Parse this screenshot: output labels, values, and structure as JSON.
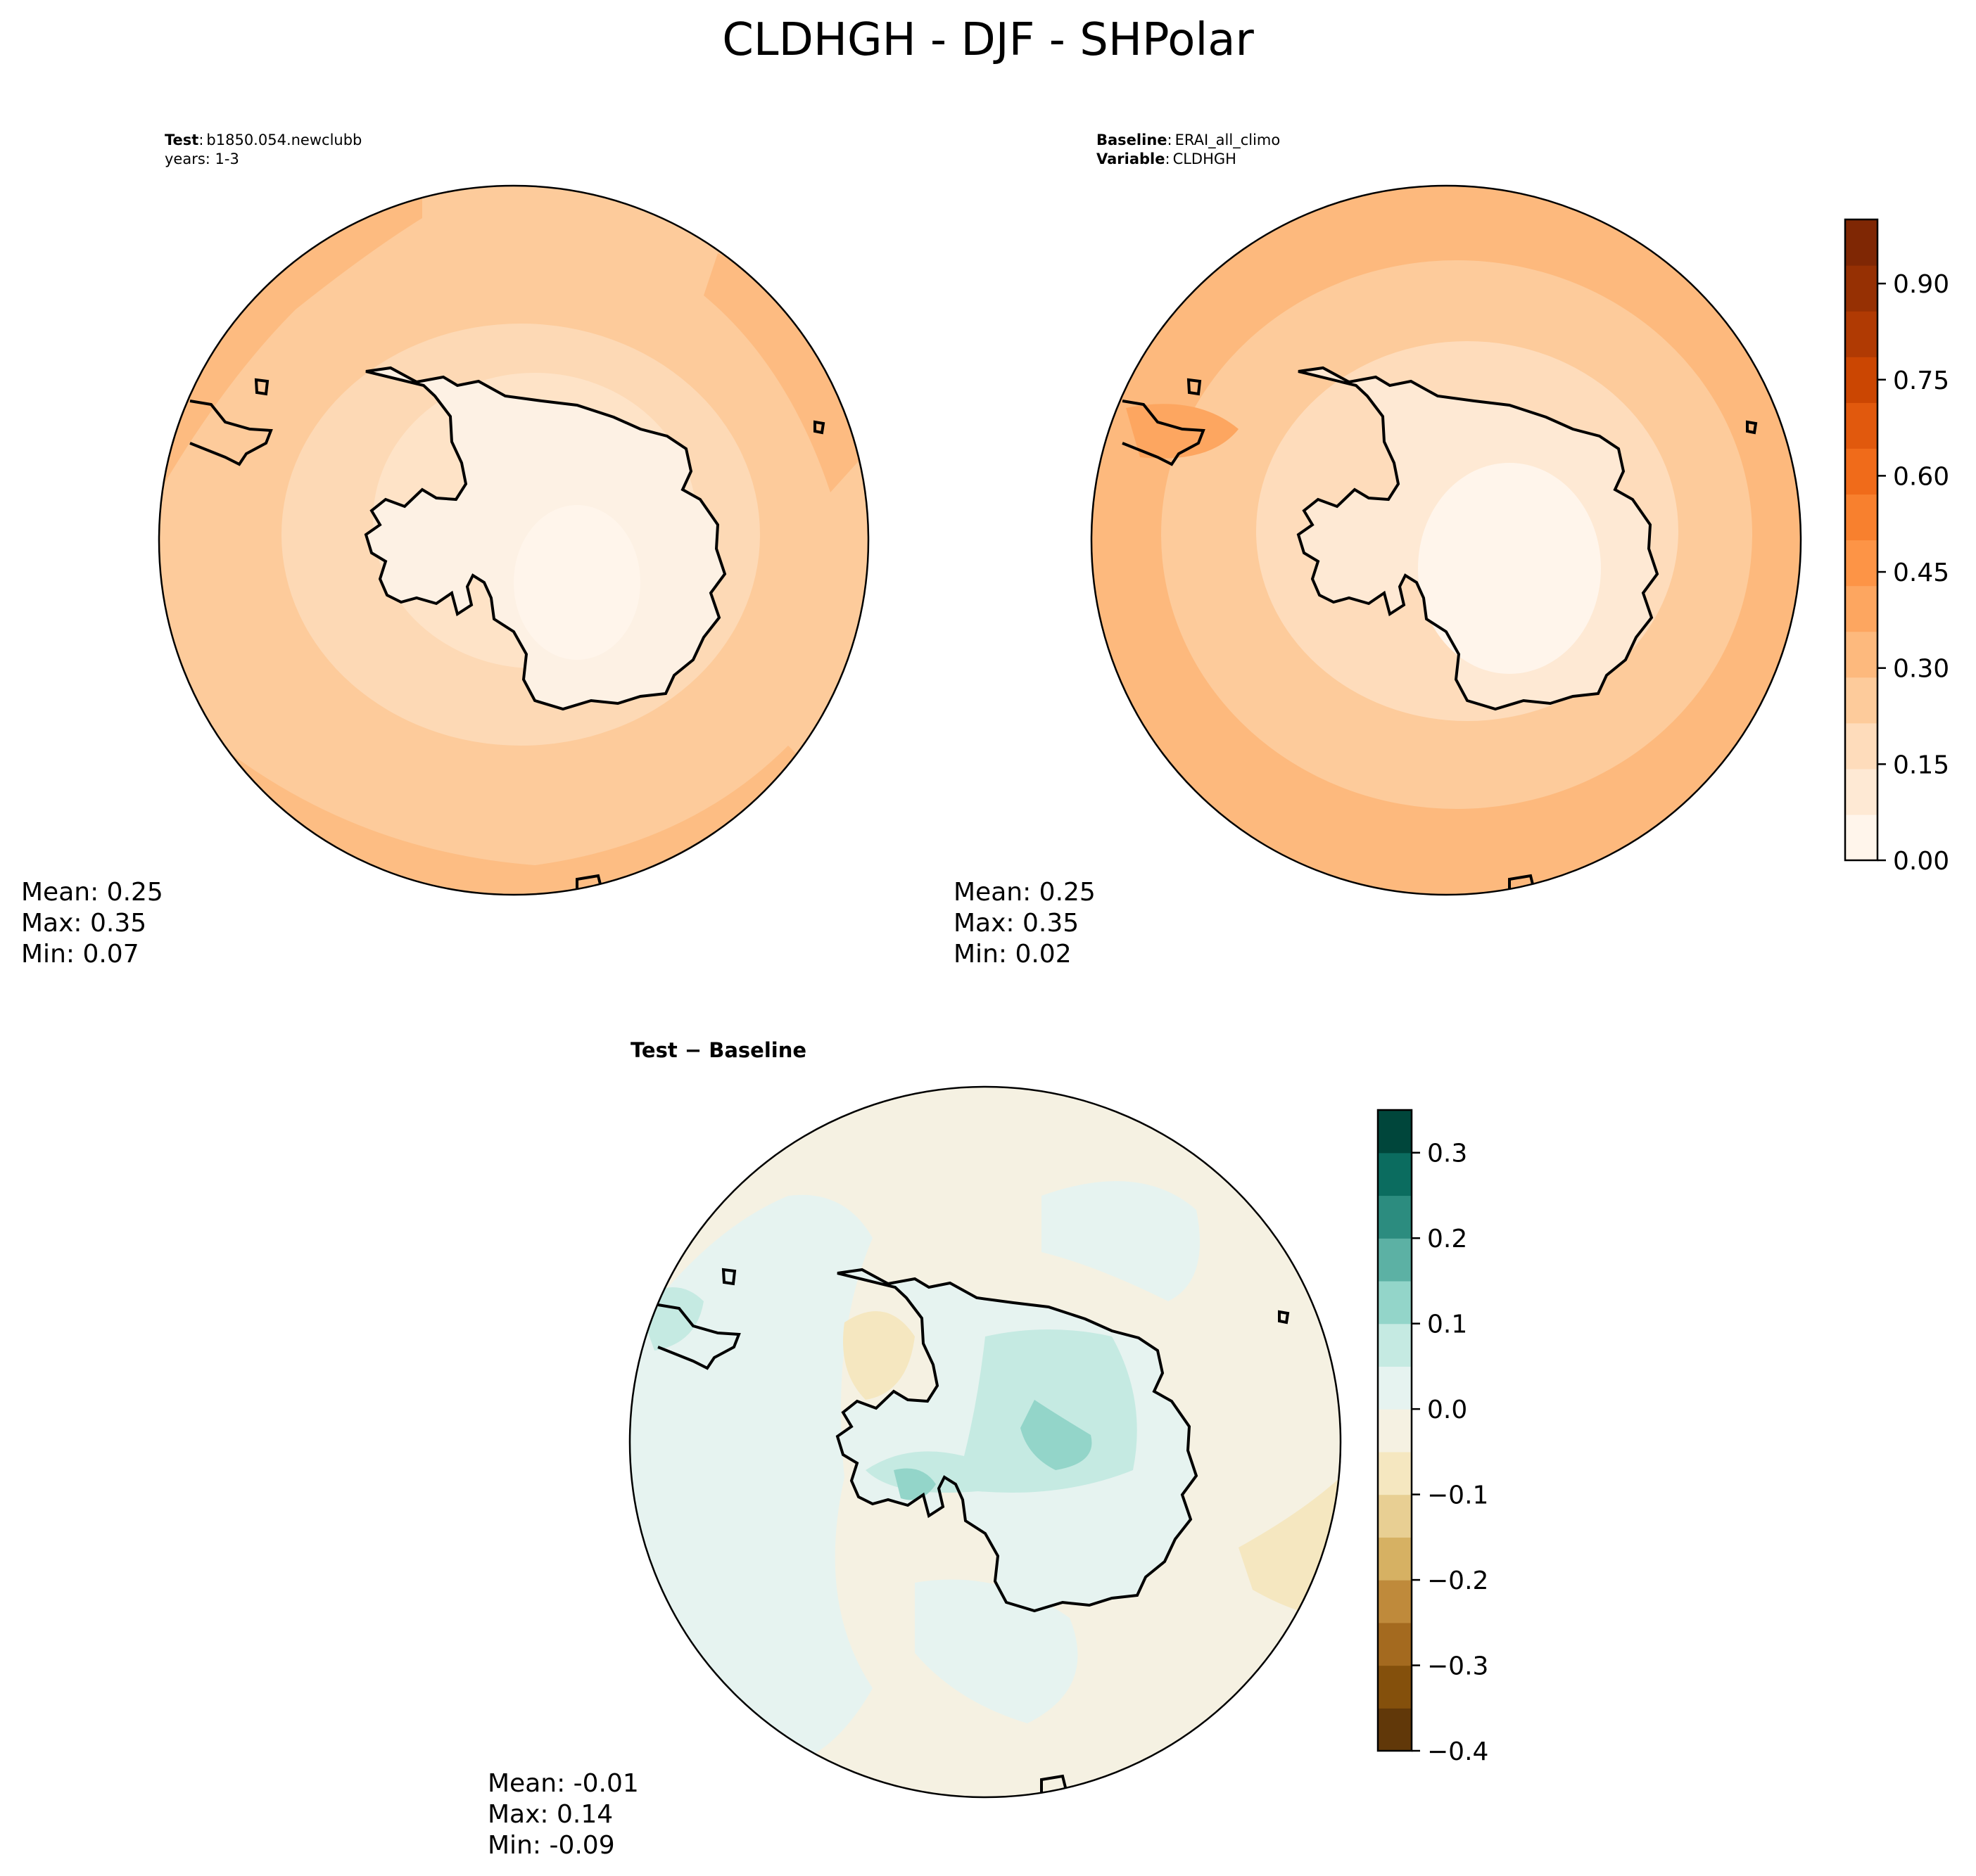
{
  "title": "CLDHGH - DJF - SHPolar",
  "panels": [
    {
      "id": "test",
      "header": [
        {
          "label": "Test",
          "sep": ":",
          "value": "b1850.054.newclubb"
        },
        {
          "label": "",
          "sep": "",
          "value": "years: 1-3"
        }
      ],
      "stats": [
        "Mean:  0.25",
        "Max:  0.35",
        "Min:  0.07"
      ]
    },
    {
      "id": "baseline",
      "header": [
        {
          "label": "Baseline",
          "sep": ":",
          "value": "ERAI_all_climo"
        },
        {
          "label": "Variable",
          "sep": ":",
          "value": "CLDHGH"
        }
      ],
      "stats": [
        "Mean:  0.25",
        "Max:  0.35",
        "Min:  0.02"
      ]
    },
    {
      "id": "difference",
      "header": [
        {
          "label": "Test − Baseline",
          "sep": "",
          "value": ""
        }
      ],
      "stats": [
        "Mean: -0.01",
        "Max:  0.14",
        "Min: -0.09"
      ]
    }
  ],
  "colorbars": [
    {
      "id": "main-colorbar",
      "range": [
        0.0,
        1.0
      ],
      "ticks": [
        0.0,
        0.15,
        0.3,
        0.45,
        0.6,
        0.75,
        0.9
      ],
      "tick_labels": [
        "0.00",
        "0.15",
        "0.30",
        "0.45",
        "0.60",
        "0.75",
        "0.90"
      ],
      "colors": [
        "#fff5eb",
        "#fee9d4",
        "#fedcbb",
        "#fdcb9b",
        "#fdb97d",
        "#fda660",
        "#fd9446",
        "#f8802e",
        "#f06b1a",
        "#e1590d",
        "#cb4602",
        "#b03a03",
        "#963003",
        "#7f2704"
      ]
    },
    {
      "id": "diff-colorbar",
      "range": [
        -0.4,
        0.35
      ],
      "ticks": [
        -0.4,
        -0.3,
        -0.2,
        -0.1,
        0.0,
        0.1,
        0.2,
        0.3
      ],
      "tick_labels": [
        "−0.4",
        "−0.3",
        "−0.2",
        "−0.1",
        "0.0",
        "0.1",
        "0.2",
        "0.3"
      ],
      "colors": [
        "#613809",
        "#84500c",
        "#a46a1f",
        "#bf8a3b",
        "#d6b163",
        "#e8cf93",
        "#f5e7c0",
        "#f5f1e2",
        "#e6f3f0",
        "#c5eae2",
        "#93d5c9",
        "#5cb1a4",
        "#2c8c7f",
        "#0b6c5f",
        "#00463b"
      ]
    }
  ],
  "map_fields": [
    {
      "panel": "test",
      "land_color": "#fdf1e4",
      "ocean_color": "#fdcb9b",
      "mid_color": "#fdd9b5",
      "edge_color": "#fdb97d"
    },
    {
      "panel": "baseline",
      "land_color": "#fff5eb",
      "ocean_color": "#fdcb9b",
      "mid_color": "#fedcbb",
      "edge_color": "#fdb97d"
    },
    {
      "panel": "difference",
      "land_color": "#cdebe4",
      "ocean_color": "#f5f1e2",
      "mid_color": "#e6f3f0",
      "edge_color": "#f5e7c0"
    }
  ]
}
